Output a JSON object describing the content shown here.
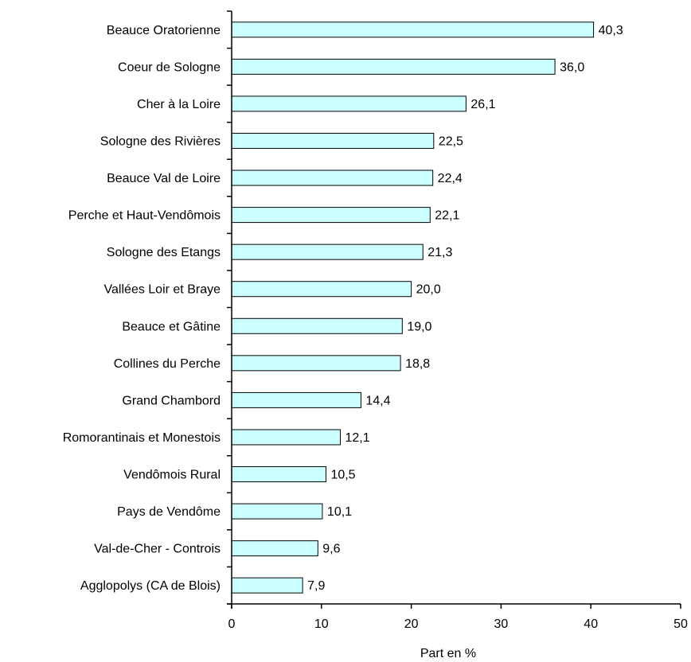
{
  "chart_data": {
    "type": "bar",
    "orientation": "horizontal",
    "categories": [
      "Beauce Oratorienne",
      "Coeur de Sologne",
      "Cher à la Loire",
      "Sologne des Rivières",
      "Beauce Val de Loire",
      "Perche et Haut-Vendômois",
      "Sologne des Etangs",
      "Vallées Loir et Braye",
      "Beauce et Gâtine",
      "Collines du Perche",
      "Grand Chambord",
      "Romorantinais et Monestois",
      "Vendômois Rural",
      "Pays de Vendôme",
      "Val-de-Cher - Controis",
      "Agglopolys (CA de Blois)"
    ],
    "values": [
      40.3,
      36.0,
      26.1,
      22.5,
      22.4,
      22.1,
      21.3,
      20.0,
      19.0,
      18.8,
      14.4,
      12.1,
      10.5,
      10.1,
      9.6,
      7.9
    ],
    "value_labels": [
      "40,3",
      "36,0",
      "26,1",
      "22,5",
      "22,4",
      "22,1",
      "21,3",
      "20,0",
      "19,0",
      "18,8",
      "14,4",
      "12,1",
      "10,5",
      "10,1",
      "9,6",
      "7,9"
    ],
    "xlabel": "Part en %",
    "xlim": [
      0,
      50
    ],
    "xticks": [
      0,
      10,
      20,
      30,
      40,
      50
    ],
    "xtick_labels": [
      "0",
      "10",
      "20",
      "30",
      "40",
      "50"
    ],
    "bar_color": "#ccffff",
    "bar_edge_color": "#000000",
    "grid": false,
    "legend": "none"
  }
}
